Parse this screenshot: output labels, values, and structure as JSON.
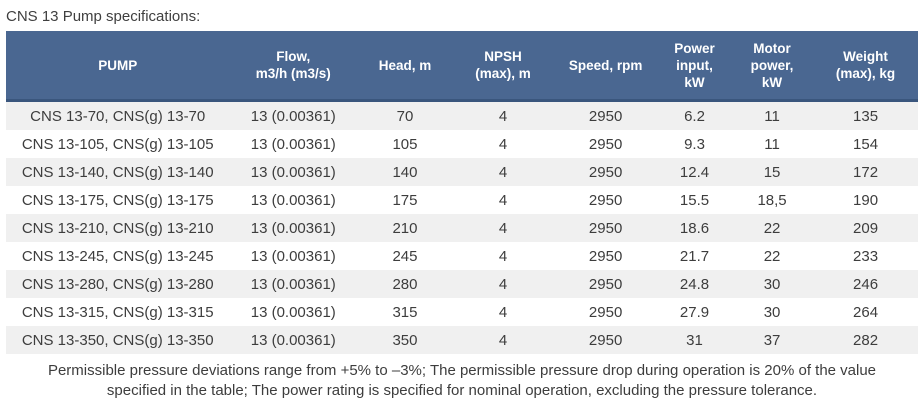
{
  "title": "CNS 13 Pump specifications:",
  "table": {
    "columns": [
      {
        "label": "PUMP",
        "width": "24.5%"
      },
      {
        "label": "Flow,\nm3/h (m3/s)",
        "width": "14%"
      },
      {
        "label": "Head, m",
        "width": "10.5%"
      },
      {
        "label": "NPSH\n(max), m",
        "width": "11%"
      },
      {
        "label": "Speed, rpm",
        "width": "11.5%"
      },
      {
        "label": "Power\ninput,\nkW",
        "width": "8%"
      },
      {
        "label": "Motor\npower,\nkW",
        "width": "9%"
      },
      {
        "label": "Weight\n(max), kg",
        "width": "11.5%"
      }
    ],
    "rows": [
      [
        "CNS 13-70, CNS(g) 13-70",
        "13 (0.00361)",
        "70",
        "4",
        "2950",
        "6.2",
        "11",
        "135"
      ],
      [
        "CNS 13-105, CNS(g) 13-105",
        "13 (0.00361)",
        "105",
        "4",
        "2950",
        "9.3",
        "11",
        "154"
      ],
      [
        "CNS 13-140, CNS(g) 13-140",
        "13 (0.00361)",
        "140",
        "4",
        "2950",
        "12.4",
        "15",
        "172"
      ],
      [
        "CNS 13-175, CNS(g) 13-175",
        "13 (0.00361)",
        "175",
        "4",
        "2950",
        "15.5",
        "18,5",
        "190"
      ],
      [
        "CNS 13-210, CNS(g) 13-210",
        "13 (0.00361)",
        "210",
        "4",
        "2950",
        "18.6",
        "22",
        "209"
      ],
      [
        "CNS 13-245, CNS(g) 13-245",
        "13 (0.00361)",
        "245",
        "4",
        "2950",
        "21.7",
        "22",
        "233"
      ],
      [
        "CNS 13-280, CNS(g) 13-280",
        "13 (0.00361)",
        "280",
        "4",
        "2950",
        "24.8",
        "30",
        "246"
      ],
      [
        "CNS 13-315, CNS(g) 13-315",
        "13 (0.00361)",
        "315",
        "4",
        "2950",
        "27.9",
        "30",
        "264"
      ],
      [
        "CNS 13-350, CNS(g) 13-350",
        "13 (0.00361)",
        "350",
        "4",
        "2950",
        "31",
        "37",
        "282"
      ]
    ]
  },
  "footnote": "Permissible pressure deviations range from +5% to –3%; The permissible pressure drop during operation is 20% of the value specified in the table; The power rating is specified for nominal operation, excluding the pressure tolerance.",
  "colors": {
    "header_bg": "#4a6791",
    "header_border": "#3a567d",
    "header_text": "#ffffff",
    "row_alt_bg": "#f0f0f0",
    "row_bg": "#ffffff",
    "body_text": "#3d3d3d"
  }
}
